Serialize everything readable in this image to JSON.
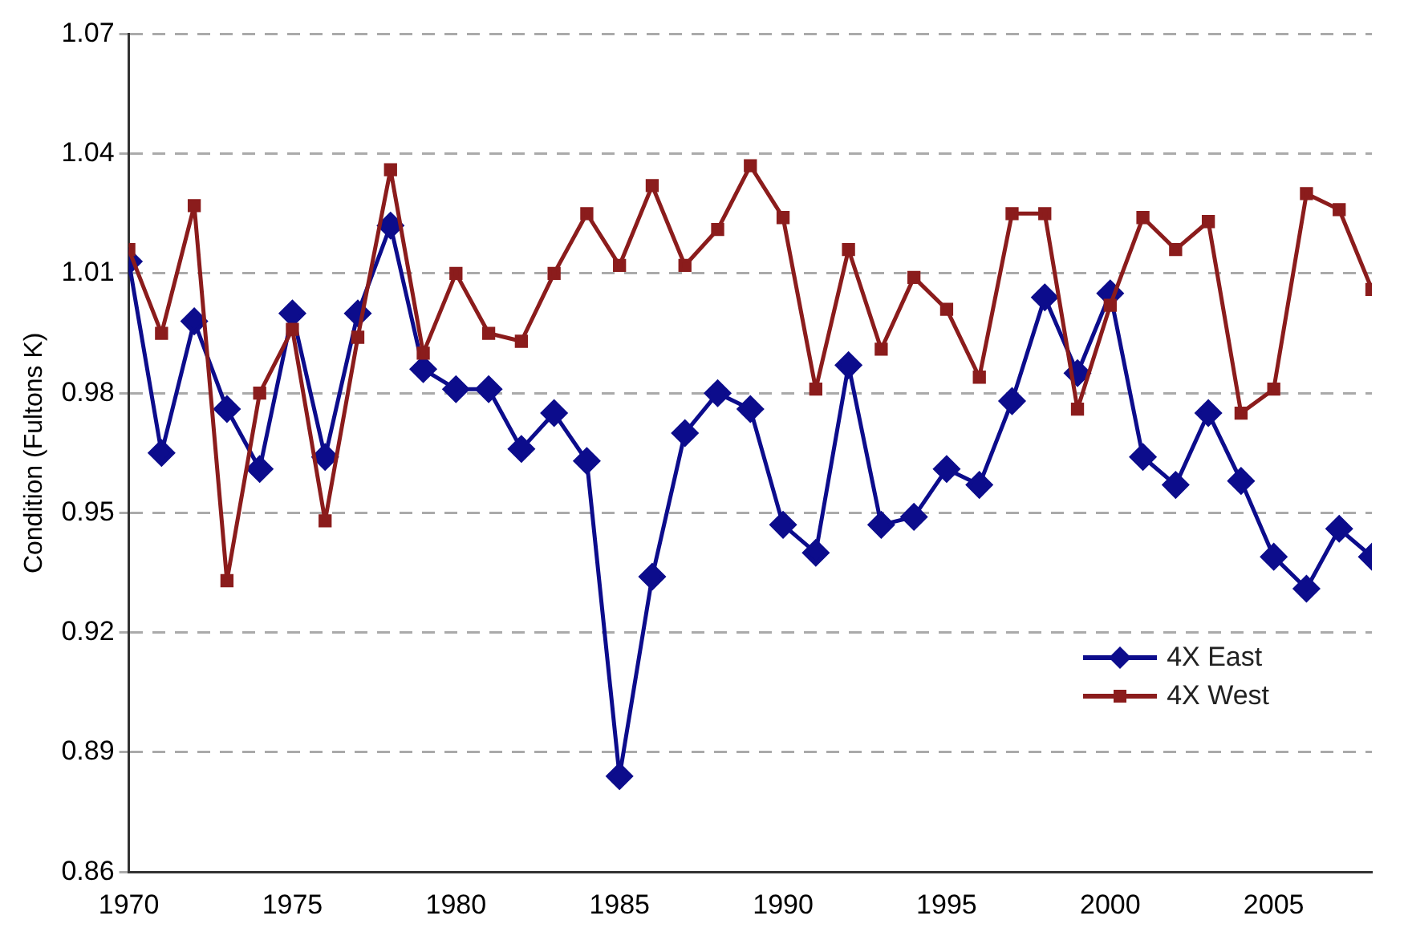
{
  "chart_data": {
    "type": "line",
    "ylabel": "Condition (Fultons K)",
    "x": [
      1970,
      1971,
      1972,
      1973,
      1974,
      1975,
      1976,
      1977,
      1978,
      1979,
      1980,
      1981,
      1982,
      1983,
      1984,
      1985,
      1986,
      1987,
      1988,
      1989,
      1990,
      1991,
      1992,
      1993,
      1994,
      1995,
      1996,
      1997,
      1998,
      1999,
      2000,
      2001,
      2002,
      2003,
      2004,
      2005,
      2006,
      2007,
      2008
    ],
    "series": [
      {
        "name": "4X East",
        "color": "#0c0c8c",
        "marker": "diamond",
        "values": [
          1.013,
          0.965,
          0.998,
          0.976,
          0.961,
          1.0,
          0.964,
          1.0,
          1.022,
          0.986,
          0.981,
          0.981,
          0.966,
          0.975,
          0.963,
          0.884,
          0.934,
          0.97,
          0.98,
          0.976,
          0.947,
          0.94,
          0.987,
          0.947,
          0.949,
          0.961,
          0.957,
          0.978,
          1.004,
          0.985,
          1.005,
          0.964,
          0.957,
          0.975,
          0.958,
          0.939,
          0.931,
          0.946,
          0.939
        ]
      },
      {
        "name": "4X West",
        "color": "#8b1c1c",
        "marker": "square",
        "values": [
          1.016,
          0.995,
          1.027,
          0.933,
          0.98,
          0.996,
          0.948,
          0.994,
          1.036,
          0.99,
          1.01,
          0.995,
          0.993,
          1.01,
          1.025,
          1.012,
          1.032,
          1.012,
          1.021,
          1.037,
          1.024,
          0.981,
          1.016,
          0.991,
          1.009,
          1.001,
          0.984,
          1.025,
          1.025,
          0.976,
          1.002,
          1.024,
          1.016,
          1.023,
          0.975,
          0.981,
          1.03,
          1.026,
          1.006
        ]
      }
    ],
    "xlim": [
      1970,
      2008
    ],
    "xticks": [
      1970,
      1975,
      1980,
      1985,
      1990,
      1995,
      2000,
      2005
    ],
    "ylim": [
      0.86,
      1.07
    ],
    "yticks": [
      {
        "value": 0.86,
        "label": "0.86"
      },
      {
        "value": 0.89,
        "label": "0.89"
      },
      {
        "value": 0.92,
        "label": "0.92"
      },
      {
        "value": 0.95,
        "label": "0.95"
      },
      {
        "value": 0.98,
        "label": "0.98"
      },
      {
        "value": 1.01,
        "label": "1.01"
      },
      {
        "value": 1.04,
        "label": "1.04"
      },
      {
        "value": 1.07,
        "label": "1.07"
      }
    ],
    "grid": "y",
    "line_style": "solid",
    "legend": "bottom right"
  }
}
